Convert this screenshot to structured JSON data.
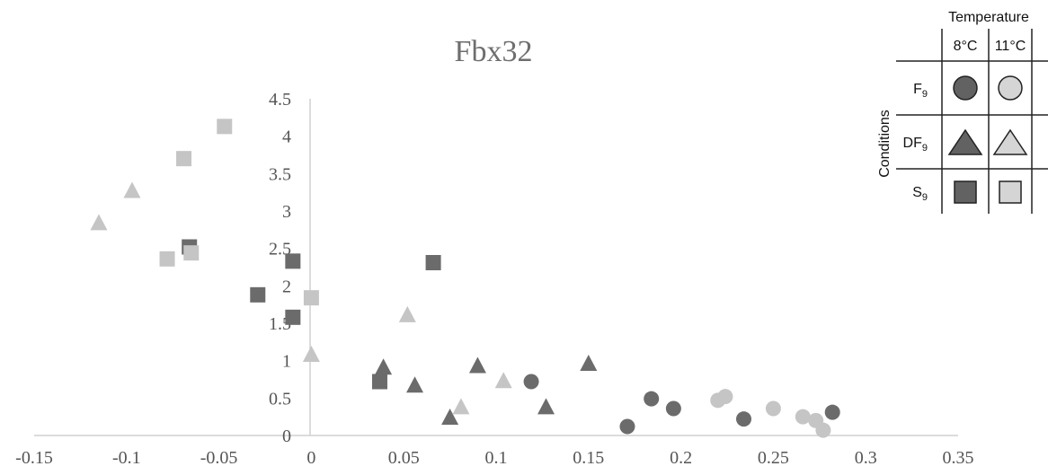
{
  "colors": {
    "dark": "#6b6b6b",
    "light": "#c5c5c5",
    "axis": "#d0d0d0",
    "legend_dark": "#626262",
    "legend_light": "#d5d5d5"
  },
  "legend": {
    "header": "Temperature",
    "axis_label": "Conditions",
    "columns": [
      "8°C",
      "11°C"
    ],
    "rows": [
      {
        "label": "F",
        "sub": "9",
        "shape": "circle"
      },
      {
        "label": "DF",
        "sub": "9",
        "shape": "triangle"
      },
      {
        "label": "S",
        "sub": "9",
        "shape": "square"
      }
    ]
  },
  "chart_data": {
    "type": "scatter",
    "title": "Fbx32",
    "xlim": [
      -0.15,
      0.35
    ],
    "ylim": [
      0,
      4.5
    ],
    "x_ticks": [
      "-0.15",
      "-0.1",
      "-0.05",
      "0",
      "0.05",
      "0.1",
      "0.15",
      "0.2",
      "0.25",
      "0.3",
      "0.35"
    ],
    "y_ticks": [
      "0",
      "0.5",
      "1",
      "1.5",
      "2",
      "2.5",
      "3",
      "3.5",
      "4",
      "4.5"
    ],
    "grid": false,
    "legend_position": "top-right",
    "series": [
      {
        "condition": "F9",
        "temperature": "8°C",
        "shape": "circle",
        "color": "dark",
        "points": [
          [
            0.119,
            0.72
          ],
          [
            0.171,
            0.12
          ],
          [
            0.184,
            0.49
          ],
          [
            0.196,
            0.36
          ],
          [
            0.234,
            0.22
          ],
          [
            0.282,
            0.31
          ]
        ]
      },
      {
        "condition": "F9",
        "temperature": "11°C",
        "shape": "circle",
        "color": "light",
        "points": [
          [
            0.22,
            0.47
          ],
          [
            0.224,
            0.52
          ],
          [
            0.25,
            0.36
          ],
          [
            0.266,
            0.25
          ],
          [
            0.273,
            0.2
          ],
          [
            0.277,
            0.07
          ]
        ]
      },
      {
        "condition": "DF9",
        "temperature": "8°C",
        "shape": "triangle",
        "color": "dark",
        "points": [
          [
            0.039,
            0.9
          ],
          [
            0.056,
            0.66
          ],
          [
            0.075,
            0.23
          ],
          [
            0.09,
            0.92
          ],
          [
            0.127,
            0.37
          ],
          [
            0.15,
            0.95
          ]
        ]
      },
      {
        "condition": "DF9",
        "temperature": "11°C",
        "shape": "triangle",
        "color": "light",
        "points": [
          [
            -0.115,
            2.83
          ],
          [
            -0.097,
            3.26
          ],
          [
            0.0,
            1.07
          ],
          [
            0.052,
            1.6
          ],
          [
            0.081,
            0.37
          ],
          [
            0.104,
            0.72
          ]
        ]
      },
      {
        "condition": "S9",
        "temperature": "8°C",
        "shape": "square",
        "color": "dark",
        "points": [
          [
            -0.066,
            2.52
          ],
          [
            -0.029,
            1.88
          ],
          [
            -0.01,
            1.58
          ],
          [
            -0.01,
            2.33
          ],
          [
            0.037,
            0.72
          ],
          [
            0.066,
            2.31
          ]
        ]
      },
      {
        "condition": "S9",
        "temperature": "11°C",
        "shape": "square",
        "color": "light",
        "points": [
          [
            -0.078,
            2.36
          ],
          [
            -0.069,
            3.7
          ],
          [
            -0.065,
            2.44
          ],
          [
            -0.047,
            4.13
          ],
          [
            0.0,
            1.84
          ]
        ]
      }
    ]
  }
}
